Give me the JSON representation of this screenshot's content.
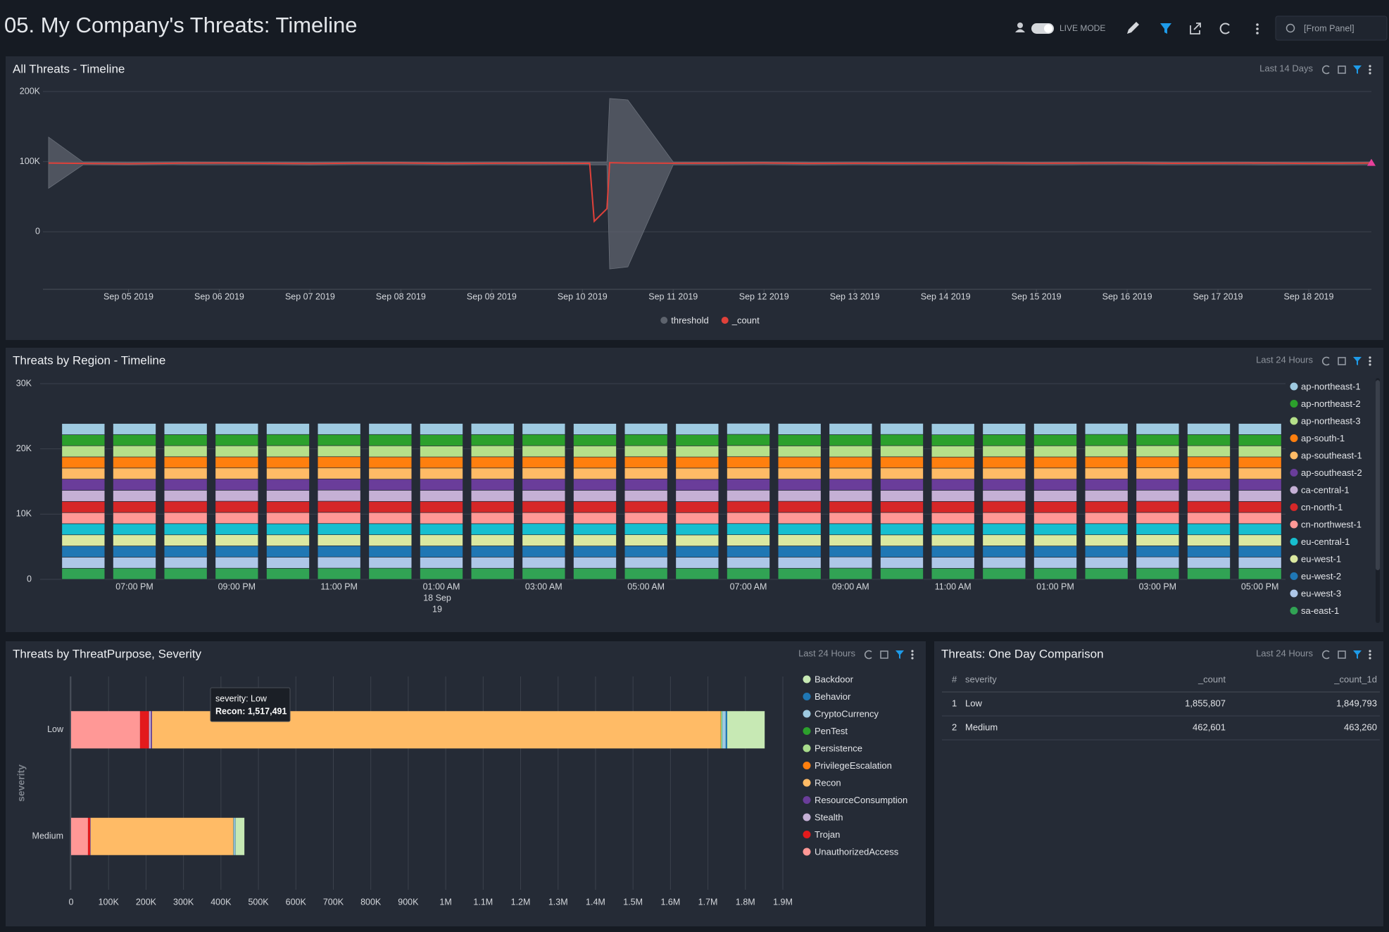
{
  "header": {
    "title": "05. My Company's Threats: Timeline",
    "live_mode": "LIVE MODE",
    "time_picker": "[From Panel]"
  },
  "chart_data": [
    {
      "type": "line",
      "title": "All Threats - Timeline",
      "time_range": "Last 14 Days",
      "x": [
        4.12,
        4.5,
        5.0,
        5.5,
        6.0,
        6.5,
        7.0,
        7.5,
        8.0,
        8.5,
        9.0,
        9.5,
        10.0,
        10.08,
        10.13,
        10.27,
        10.3,
        10.5,
        11.0,
        11.5,
        12.0,
        12.5,
        13.0,
        13.5,
        14.0,
        14.5,
        15.0,
        15.5,
        16.0,
        16.5,
        17.0,
        17.5,
        18.0,
        18.5,
        18.69
      ],
      "xlim": [
        4.12,
        18.69
      ],
      "xticks": [
        {
          "value": 5,
          "label": "Sep 05 2019"
        },
        {
          "value": 6,
          "label": "Sep 06 2019"
        },
        {
          "value": 7,
          "label": "Sep 07 2019"
        },
        {
          "value": 8,
          "label": "Sep 08 2019"
        },
        {
          "value": 9,
          "label": "Sep 09 2019"
        },
        {
          "value": 10,
          "label": "Sep 10 2019"
        },
        {
          "value": 11,
          "label": "Sep 11 2019"
        },
        {
          "value": 12,
          "label": "Sep 12 2019"
        },
        {
          "value": 13,
          "label": "Sep 13 2019"
        },
        {
          "value": 14,
          "label": "Sep 14 2019"
        },
        {
          "value": 15,
          "label": "Sep 15 2019"
        },
        {
          "value": 16,
          "label": "Sep 16 2019"
        },
        {
          "value": 17,
          "label": "Sep 17 2019"
        },
        {
          "value": 18,
          "label": "Sep 18 2019"
        }
      ],
      "ylim": [
        -82000,
        200000
      ],
      "yticks": [
        0,
        {
          "value": 100000,
          "label": "100K"
        },
        {
          "value": 200000,
          "label": "200K"
        }
      ],
      "grid": true,
      "legend": "bottom",
      "series": [
        {
          "name": "threshold",
          "color": "#5d636d",
          "upper": [
            135000,
            99500,
            99300,
            99600,
            99400,
            99500,
            99200,
            99600,
            99500,
            99300,
            99500,
            99400,
            99600,
            99500,
            99400,
            99500,
            190000,
            188000,
            99500,
            99400,
            99600,
            99300,
            99500,
            99400,
            99600,
            99500,
            99300,
            99500,
            99600,
            99400,
            99500,
            99300,
            99500,
            99400,
            99500
          ],
          "lower": [
            62000,
            95500,
            95300,
            95600,
            95400,
            95500,
            95200,
            95600,
            95500,
            95300,
            95500,
            95400,
            95600,
            95500,
            95400,
            95500,
            -53000,
            -50000,
            95500,
            95400,
            95600,
            95300,
            95500,
            95400,
            95600,
            95500,
            95300,
            95500,
            95600,
            95400,
            95500,
            95300,
            95500,
            95400,
            95500
          ]
        },
        {
          "name": "_count",
          "color": "#e0413a",
          "end_marker": "#e8409a",
          "values": [
            98000,
            97500,
            97000,
            97800,
            98200,
            97600,
            97300,
            97900,
            98100,
            97400,
            97700,
            98000,
            97600,
            97800,
            15000,
            33000,
            98500,
            98000,
            97700,
            97900,
            98100,
            97500,
            97800,
            97600,
            97400,
            98000,
            97700,
            97900,
            98200,
            97600,
            97800,
            98000,
            97500,
            97900,
            98000
          ]
        }
      ]
    },
    {
      "type": "bar",
      "stacked": true,
      "title": "Threats by Region - Timeline",
      "time_range": "Last 24 Hours",
      "categories": [
        null,
        "07:00 PM",
        null,
        "09:00 PM",
        null,
        "11:00 PM",
        null,
        "01:00 AM",
        null,
        "03:00 AM",
        null,
        "05:00 AM",
        null,
        "07:00 AM",
        null,
        "09:00 AM",
        null,
        "11:00 AM",
        null,
        "01:00 PM",
        null,
        "03:00 PM",
        null,
        "05:00 PM"
      ],
      "date_label": {
        "category": "01:00 AM",
        "lines": [
          "18 Sep",
          "19"
        ]
      },
      "ylim": [
        0,
        30000
      ],
      "yticks": [
        0,
        {
          "value": 10000,
          "label": "10K"
        },
        {
          "value": 20000,
          "label": "20K"
        },
        {
          "value": 30000,
          "label": "30K"
        }
      ],
      "grid": true,
      "legend": "right",
      "series": [
        {
          "name": "ap-northeast-1",
          "color": "#9ecae1",
          "values": [
            1710,
            1695,
            1720,
            1705,
            1690,
            1715,
            1700,
            1725,
            1710,
            1698,
            1712,
            1704,
            1718,
            1692,
            1707,
            1721,
            1699,
            1711,
            1703,
            1716,
            1694,
            1708,
            1713,
            1701
          ]
        },
        {
          "name": "ap-northeast-2",
          "color": "#2ca02c",
          "values": [
            1690,
            1712,
            1701,
            1718,
            1706,
            1693,
            1720,
            1709,
            1697,
            1714,
            1702,
            1716,
            1691,
            1708,
            1719,
            1700,
            1713,
            1696,
            1710,
            1705,
            1722,
            1698,
            1707,
            1715
          ]
        },
        {
          "name": "ap-northeast-3",
          "color": "#b5e08a",
          "values": [
            1705,
            1718,
            1692,
            1709,
            1721,
            1700,
            1714,
            1696,
            1711,
            1703,
            1719,
            1690,
            1708,
            1715,
            1699,
            1712,
            1706,
            1720,
            1693,
            1710,
            1702,
            1717,
            1695,
            1709
          ]
        },
        {
          "name": "ap-south-1",
          "color": "#ff7f0e",
          "values": [
            1713,
            1700,
            1716,
            1694,
            1709,
            1722,
            1705,
            1698,
            1717,
            1706,
            1691,
            1711,
            1703,
            1720,
            1696,
            1708,
            1714,
            1701,
            1719,
            1697,
            1710,
            1704,
            1716,
            1692
          ]
        },
        {
          "name": "ap-southeast-1",
          "color": "#ffbb66",
          "values": [
            1698,
            1709,
            1715,
            1702,
            1720,
            1693,
            1711,
            1706,
            1699,
            1716,
            1708,
            1701,
            1721,
            1695,
            1713,
            1704,
            1718,
            1690,
            1707,
            1712,
            1700,
            1719,
            1703,
            1714
          ]
        },
        {
          "name": "ap-southeast-2",
          "color": "#6a3d9a",
          "values": [
            1720,
            1703,
            1697,
            1714,
            1701,
            1710,
            1692,
            1718,
            1705,
            1709,
            1696,
            1722,
            1700,
            1712,
            1704,
            1691,
            1716,
            1707,
            1698,
            1721,
            1711,
            1695,
            1717,
            1706
          ]
        },
        {
          "name": "ca-central-1",
          "color": "#c5b0d5",
          "values": [
            1702,
            1716,
            1708,
            1691,
            1713,
            1704,
            1719,
            1700,
            1722,
            1694,
            1710,
            1698,
            1715,
            1706,
            1693,
            1717,
            1703,
            1712,
            1696,
            1708,
            1720,
            1701,
            1699,
            1718
          ]
        },
        {
          "name": "cn-north-1",
          "color": "#d62728",
          "values": [
            1716,
            1694,
            1710,
            1721,
            1698,
            1707,
            1703,
            1713,
            1692,
            1720,
            1705,
            1709,
            1697,
            1718,
            1711,
            1702,
            1690,
            1715,
            1722,
            1700,
            1706,
            1714,
            1708,
            1696
          ]
        },
        {
          "name": "cn-northwest-1",
          "color": "#ff9896",
          "values": [
            1694,
            1721,
            1704,
            1700,
            1717,
            1712,
            1696,
            1707,
            1719,
            1691,
            1715,
            1703,
            1710,
            1699,
            1722,
            1706,
            1713,
            1694,
            1701,
            1718,
            1697,
            1709,
            1720,
            1704
          ]
        },
        {
          "name": "eu-central-1",
          "color": "#17becf",
          "values": [
            1707,
            1699,
            1719,
            1712,
            1695,
            1718,
            1709,
            1693,
            1704,
            1721,
            1700,
            1714,
            1706,
            1717,
            1692,
            1711,
            1720,
            1703,
            1715,
            1695,
            1713,
            1698,
            1702,
            1710
          ]
        },
        {
          "name": "eu-west-1",
          "color": "#dbe8a0",
          "values": [
            1719,
            1706,
            1693,
            1717,
            1711,
            1696,
            1722,
            1714,
            1701,
            1708,
            1718,
            1695,
            1712,
            1703,
            1716,
            1699,
            1707,
            1721,
            1694,
            1704,
            1715,
            1710,
            1697,
            1713
          ]
        },
        {
          "name": "eu-west-2",
          "color": "#1f77b4",
          "values": [
            1701,
            1714,
            1711,
            1696,
            1719,
            1708,
            1698,
            1721,
            1713,
            1700,
            1693,
            1717,
            1705,
            1722,
            1709,
            1697,
            1711,
            1706,
            1718,
            1714,
            1699,
            1703,
            1721,
            1695
          ]
        },
        {
          "name": "eu-west-3",
          "color": "#aec7e8",
          "values": [
            1711,
            1697,
            1706,
            1720,
            1704,
            1716,
            1701,
            1692,
            1718,
            1710,
            1714,
            1707,
            1694,
            1701,
            1720,
            1713,
            1696,
            1709,
            1705,
            1692,
            1717,
            1722,
            1700,
            1719
          ]
        },
        {
          "name": "sa-east-1",
          "color": "#31a354",
          "values": [
            1696,
            1710,
            1717,
            1708,
            1693,
            1719,
            1713,
            1704,
            1700,
            1715,
            1706,
            1720,
            1699,
            1711,
            1697,
            1722,
            1705,
            1691,
            1714,
            1709,
            1703,
            1716,
            1712,
            1702
          ]
        }
      ]
    },
    {
      "type": "barh",
      "stacked": true,
      "title": "Threats by ThreatPurpose, Severity",
      "time_range": "Last 24 Hours",
      "y_label": "severity",
      "categories": [
        "Low",
        "Medium"
      ],
      "xlim": [
        0,
        1900000
      ],
      "xticks": [
        0,
        {
          "value": 100000,
          "label": "100K"
        },
        {
          "value": 200000,
          "label": "200K"
        },
        {
          "value": 300000,
          "label": "300K"
        },
        {
          "value": 400000,
          "label": "400K"
        },
        {
          "value": 500000,
          "label": "500K"
        },
        {
          "value": 600000,
          "label": "600K"
        },
        {
          "value": 700000,
          "label": "700K"
        },
        {
          "value": 800000,
          "label": "800K"
        },
        {
          "value": 900000,
          "label": "900K"
        },
        {
          "value": 1000000,
          "label": "1M"
        },
        {
          "value": 1100000,
          "label": "1.1M"
        },
        {
          "value": 1200000,
          "label": "1.2M"
        },
        {
          "value": 1300000,
          "label": "1.3M"
        },
        {
          "value": 1400000,
          "label": "1.4M"
        },
        {
          "value": 1500000,
          "label": "1.5M"
        },
        {
          "value": 1600000,
          "label": "1.6M"
        },
        {
          "value": 1700000,
          "label": "1.7M"
        },
        {
          "value": 1800000,
          "label": "1.8M"
        },
        {
          "value": 1900000,
          "label": "1.9M"
        }
      ],
      "grid": true,
      "legend": "right",
      "tooltip": [
        "severity: Low",
        "Recon: 1,517,491"
      ],
      "series": [
        {
          "name": "Backdoor",
          "color": "#c7e9b4",
          "values": [
            100000,
            24000
          ]
        },
        {
          "name": "Behavior",
          "color": "#1f77b4",
          "values": [
            4000,
            1000
          ]
        },
        {
          "name": "CryptoCurrency",
          "color": "#9ecae1",
          "values": [
            10000,
            4000
          ]
        },
        {
          "name": "PenTest",
          "color": "#2ca02c",
          "values": [
            1000,
            300
          ]
        },
        {
          "name": "Persistence",
          "color": "#a8dc8c",
          "values": [
            2000,
            500
          ]
        },
        {
          "name": "PrivilegeEscalation",
          "color": "#ff7f0e",
          "values": [
            1000,
            300
          ]
        },
        {
          "name": "Recon",
          "color": "#ffbb66",
          "values": [
            1517491,
            380000
          ]
        },
        {
          "name": "ResourceConsumption",
          "color": "#6a3d9a",
          "values": [
            3000,
            500
          ]
        },
        {
          "name": "Stealth",
          "color": "#c5b0d5",
          "values": [
            5000,
            1000
          ]
        },
        {
          "name": "Trojan",
          "color": "#e31a1c",
          "values": [
            24000,
            6000
          ]
        },
        {
          "name": "UnauthorizedAccess",
          "color": "#ff9896",
          "values": [
            184000,
            45000
          ]
        }
      ]
    }
  ],
  "table": {
    "title": "Threats: One Day Comparison",
    "time_range": "Last 24 Hours",
    "columns": [
      "#",
      "severity",
      "_count",
      "_count_1d"
    ],
    "rows": [
      [
        1,
        "Low",
        "1,855,807",
        "1,849,793"
      ],
      [
        2,
        "Medium",
        "462,601",
        "463,260"
      ]
    ]
  }
}
